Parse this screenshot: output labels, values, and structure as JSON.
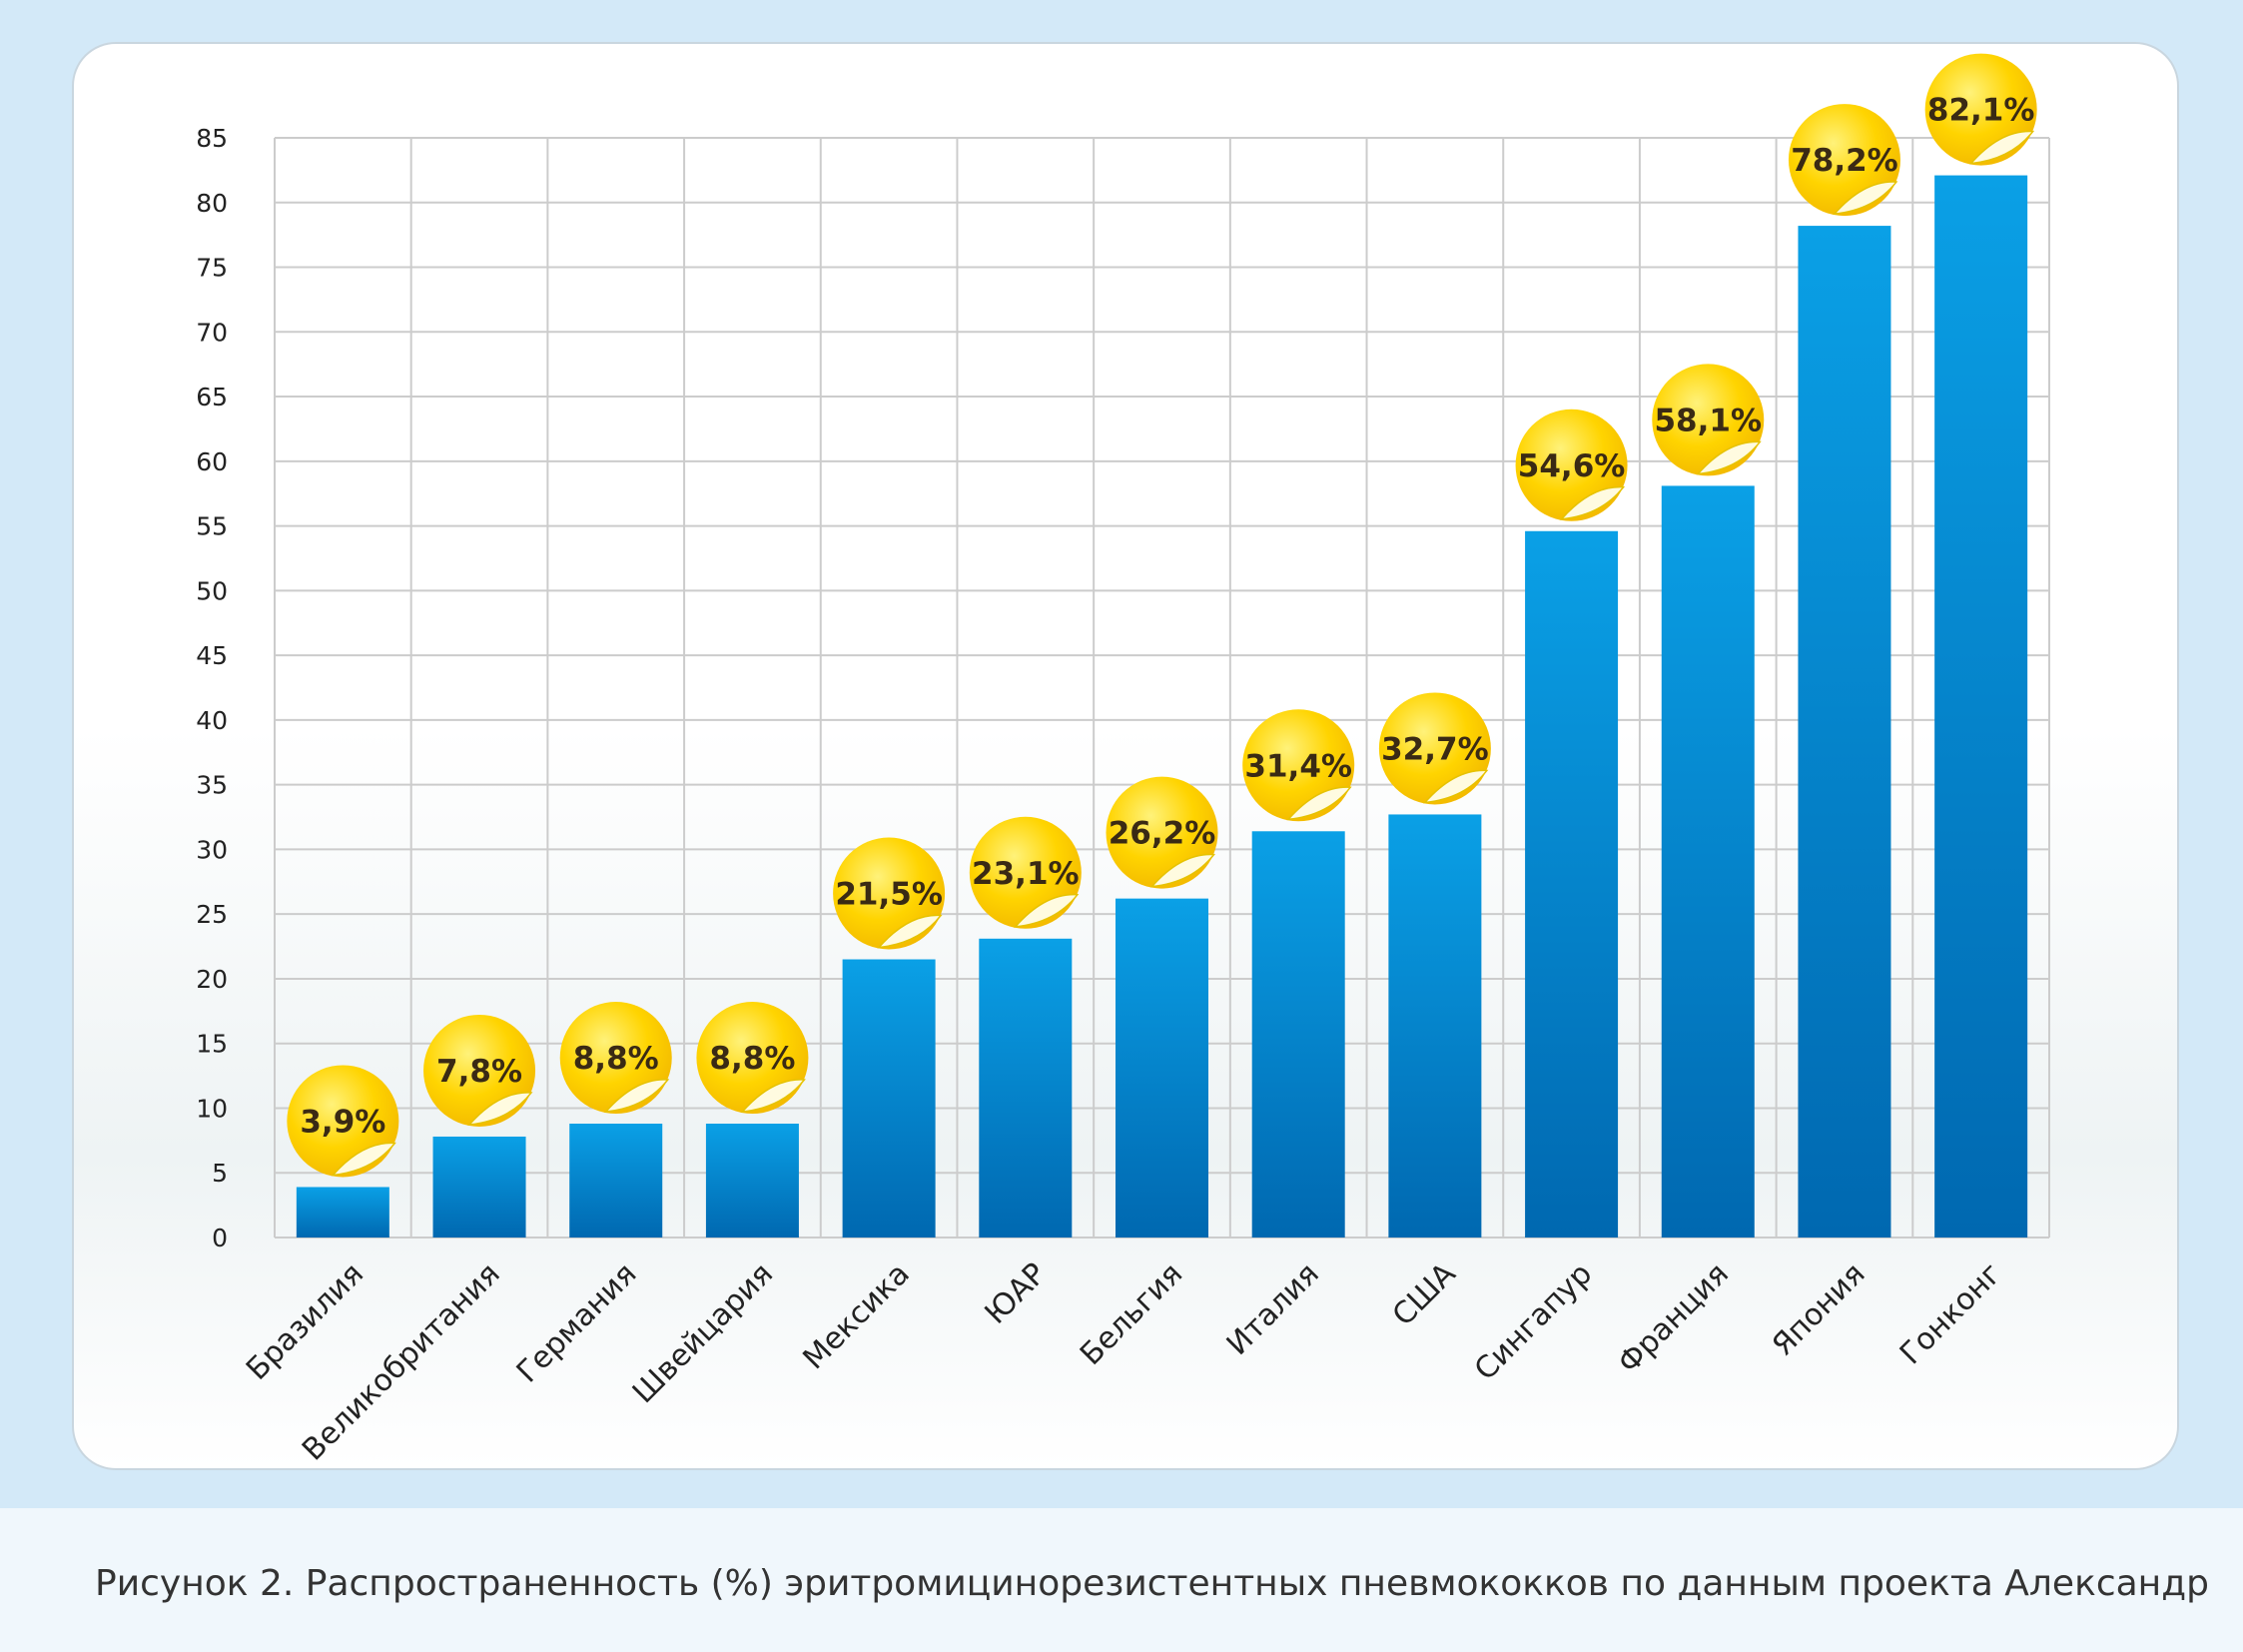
{
  "caption": "Рисунок 2. Распространенность (%) эритромицинорезистентных пневмококков по данным проекта Александр",
  "colors": {
    "bar_top": "#0aa0e6",
    "bar_bottom": "#0068b0",
    "badge": "#ffd400",
    "grid": "#cccccc"
  },
  "chart_data": {
    "type": "bar",
    "title": "",
    "xlabel": "",
    "ylabel": "",
    "ylim": [
      0,
      85
    ],
    "yticks": [
      0,
      5,
      10,
      15,
      20,
      25,
      30,
      35,
      40,
      45,
      50,
      55,
      60,
      65,
      70,
      75,
      80,
      85
    ],
    "grid": true,
    "categories": [
      "Бразилия",
      "Великобритания",
      "Германия",
      "Швейцария",
      "Мексика",
      "ЮАР",
      "Бельгия",
      "Италия",
      "США",
      "Сингапур",
      "Франция",
      "Япония",
      "Гонконг"
    ],
    "values": [
      3.9,
      7.8,
      8.8,
      8.8,
      21.5,
      23.1,
      26.2,
      31.4,
      32.7,
      54.6,
      58.1,
      78.2,
      82.1
    ],
    "value_labels": [
      "3,9%",
      "7,8%",
      "8,8%",
      "8,8%",
      "21,5%",
      "23,1%",
      "26,2%",
      "31,4%",
      "32,7%",
      "54,6%",
      "58,1%",
      "78,2%",
      "82,1%"
    ]
  }
}
